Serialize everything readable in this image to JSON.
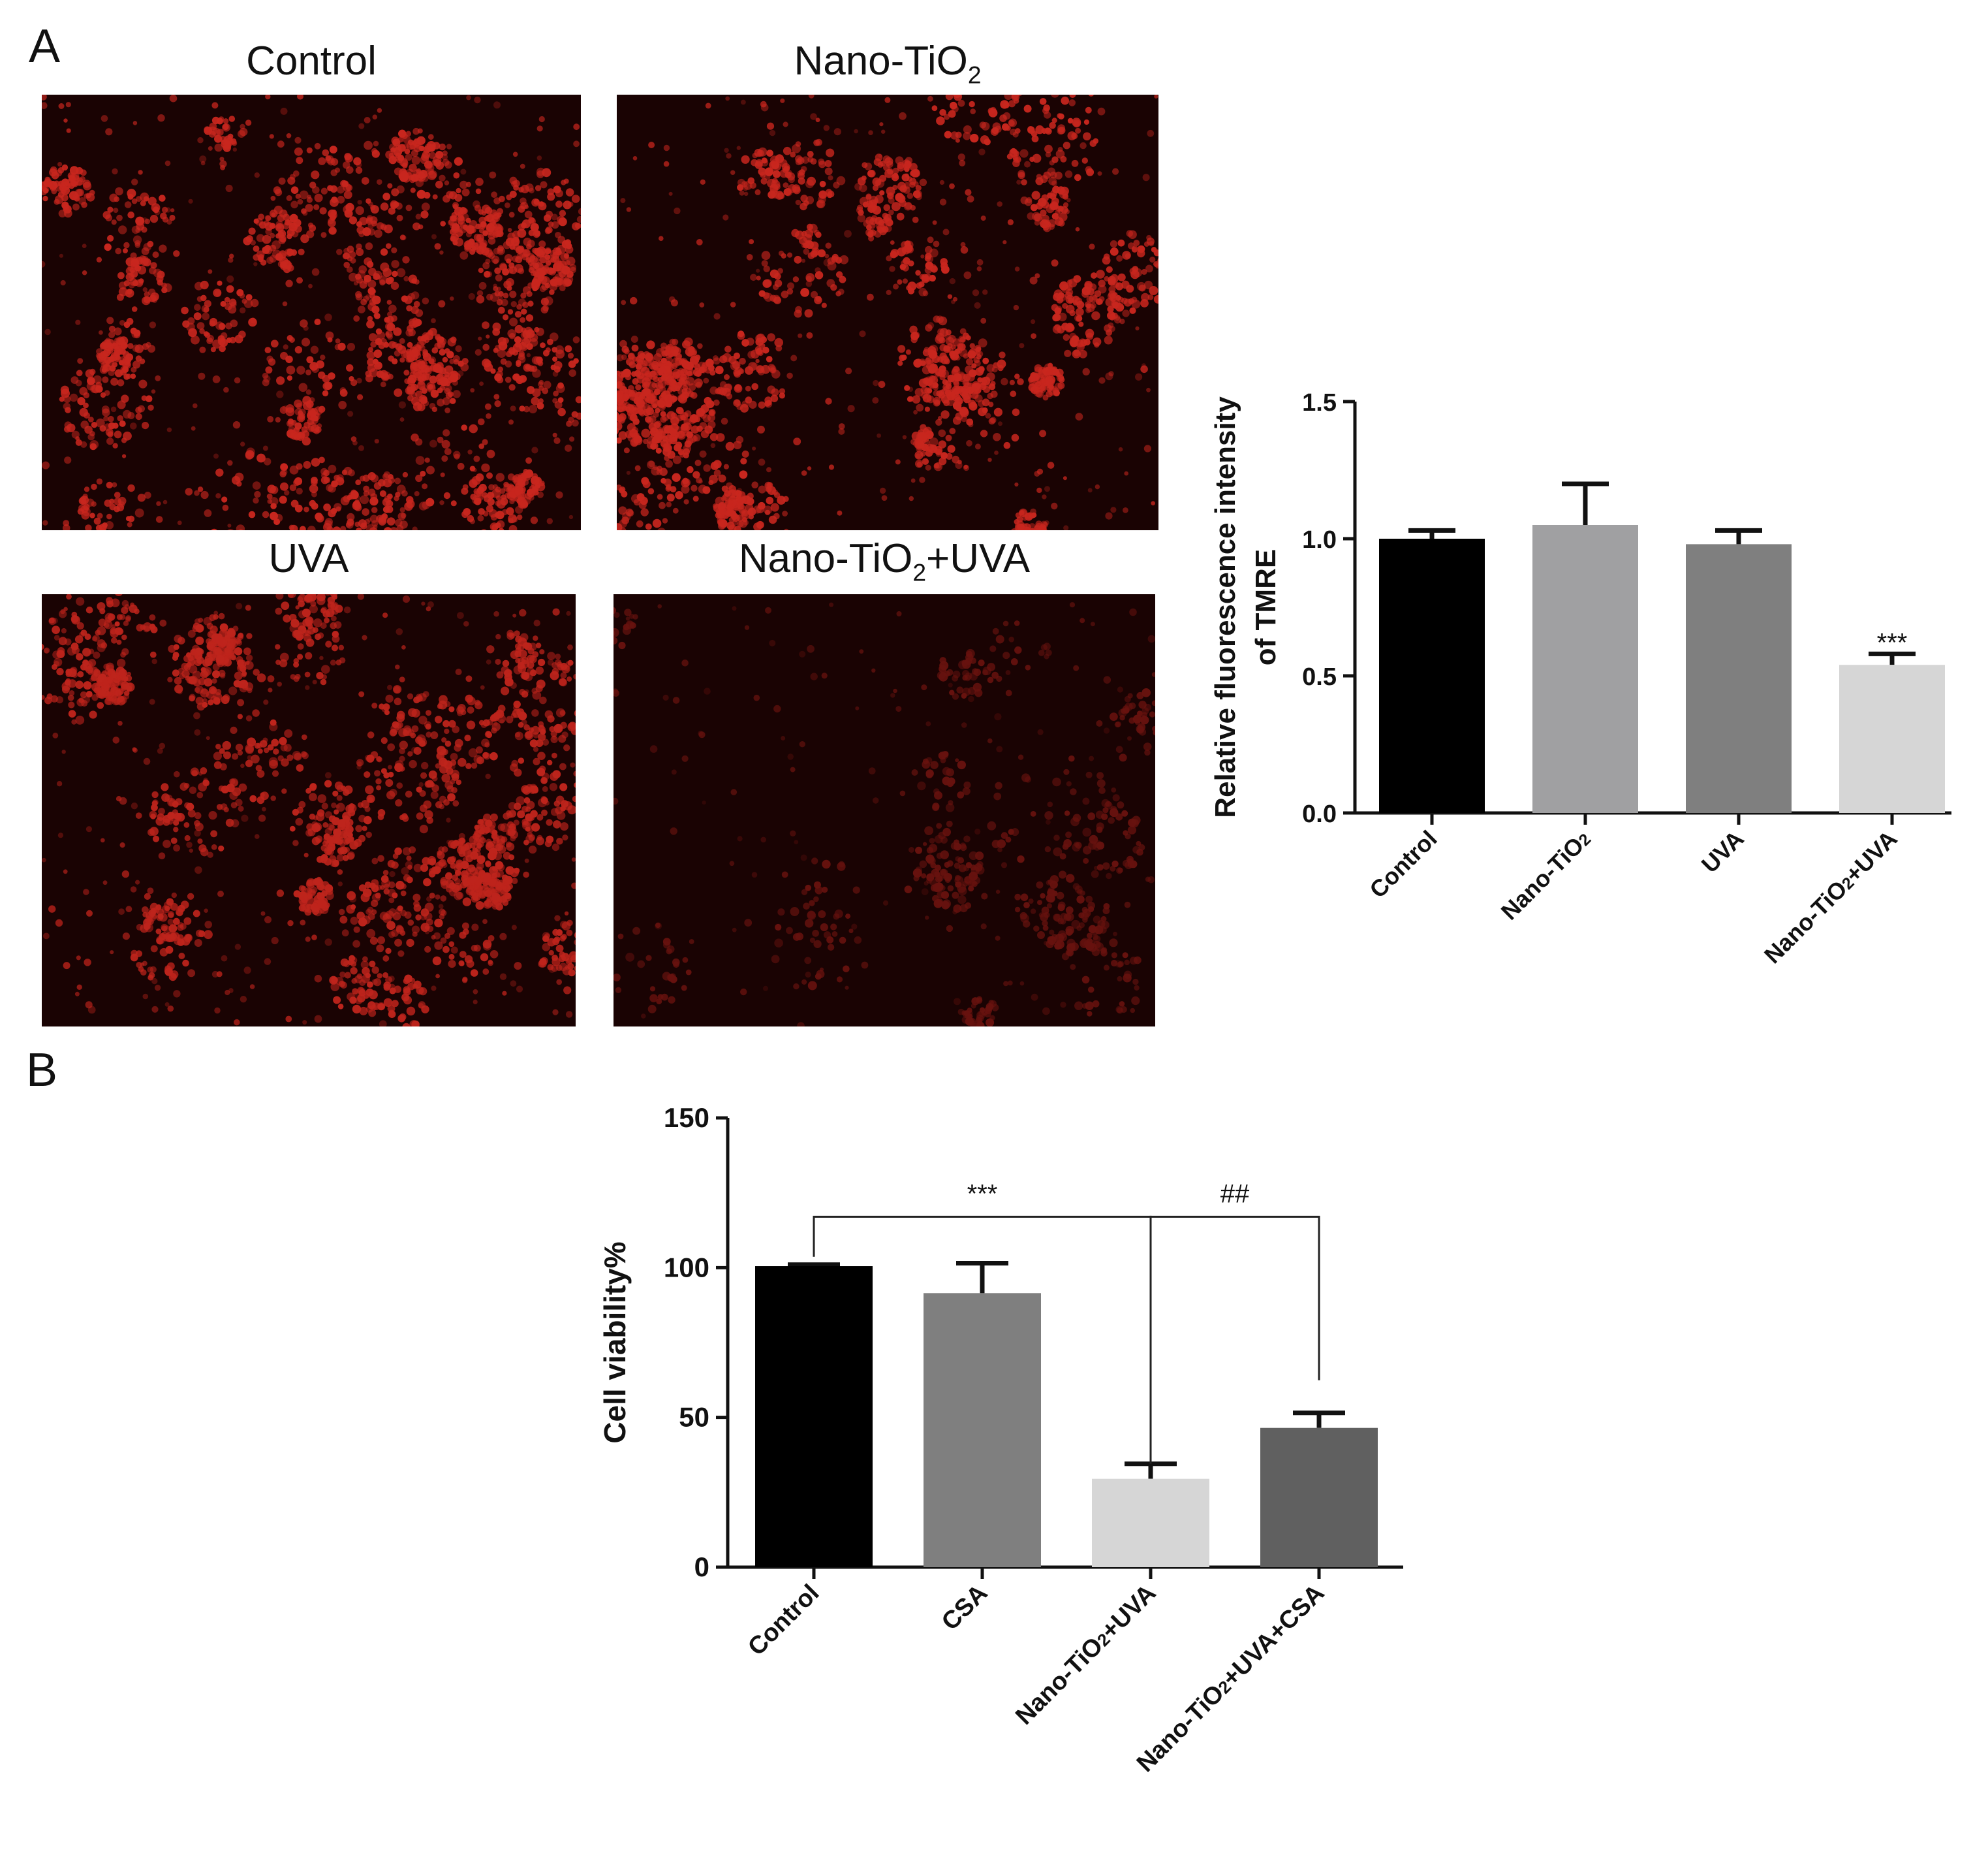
{
  "panels": {
    "a": {
      "letter": "A"
    },
    "b": {
      "letter": "B"
    }
  },
  "micrographs": [
    {
      "title": "Control",
      "brightness": 1.0,
      "density": 1.0
    },
    {
      "title": "Nano-TiO",
      "title_sub": "2",
      "brightness": 1.0,
      "density": 1.0
    },
    {
      "title": "UVA",
      "brightness": 0.95,
      "density": 1.0
    },
    {
      "title": "Nano-TiO",
      "title_sub": "2",
      "title_suffix": "+UVA",
      "brightness": 0.45,
      "density": 0.55
    }
  ],
  "colors": {
    "cell": "#c8261e",
    "background": "#1a0303"
  },
  "chart_data": [
    {
      "type": "bar",
      "panel": "A",
      "categories": [
        "Control",
        "Nano-TiO2",
        "UVA",
        "Nano-TiO2+UVA"
      ],
      "values": [
        1.0,
        1.05,
        0.98,
        0.54
      ],
      "errors": [
        0.03,
        0.15,
        0.05,
        0.04
      ],
      "colors": [
        "#000000",
        "#a0a0a2",
        "#7f7f7f",
        "#d6d6d6"
      ],
      "ylabel": [
        "Relative fluorescence intensity",
        "of TMRE"
      ],
      "ylim": [
        0,
        1.5
      ],
      "yticks": [
        "0.0",
        "0.5",
        "1.0",
        "1.5"
      ],
      "annotations": [
        {
          "category": "Nano-TiO2+UVA",
          "text": "***"
        }
      ]
    },
    {
      "type": "bar",
      "panel": "B",
      "categories": [
        "Control",
        "CSA",
        "Nano-TiO2+UVA",
        "Nano-TiO2+UVA+CSA"
      ],
      "values": [
        100.5,
        91.5,
        29.5,
        46.5
      ],
      "errors": [
        0.5,
        10,
        5,
        5
      ],
      "colors": [
        "#000000",
        "#7f7f7f",
        "#d6d6d6",
        "#606060"
      ],
      "ylabel": "Cell viability%",
      "ylim": [
        0,
        150
      ],
      "yticks": [
        "0",
        "50",
        "100",
        "150"
      ],
      "brackets": [
        {
          "from": "Control",
          "to": "Nano-TiO2+UVA",
          "text": "***"
        },
        {
          "from": "Nano-TiO2+UVA",
          "to": "Nano-TiO2+UVA+CSA",
          "text": "##"
        }
      ]
    }
  ]
}
